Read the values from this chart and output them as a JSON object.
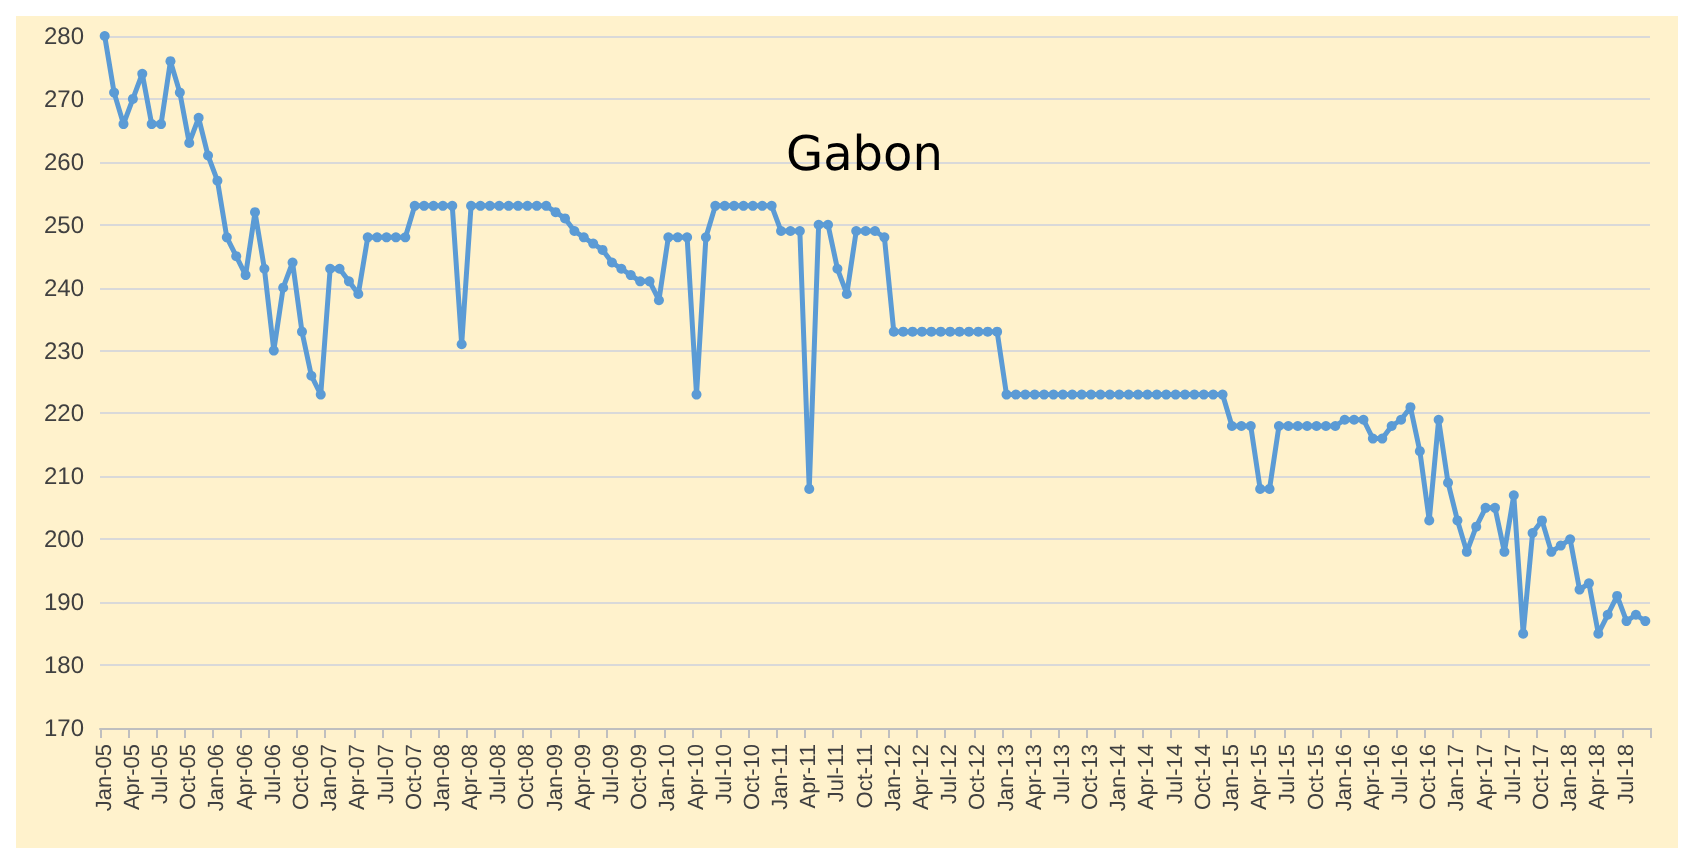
{
  "chart_data": {
    "type": "line",
    "title": "Gabon",
    "categories": [
      "Jan-05",
      null,
      null,
      "Apr-05",
      null,
      null,
      "Jul-05",
      null,
      null,
      "Oct-05",
      null,
      null,
      "Jan-06",
      null,
      null,
      "Apr-06",
      null,
      null,
      "Jul-06",
      null,
      null,
      "Oct-06",
      null,
      null,
      "Jan-07",
      null,
      null,
      "Apr-07",
      null,
      null,
      "Jul-07",
      null,
      null,
      "Oct-07",
      null,
      null,
      "Jan-08",
      null,
      null,
      "Apr-08",
      null,
      null,
      "Jul-08",
      null,
      null,
      "Oct-08",
      null,
      null,
      "Jan-09",
      null,
      null,
      "Apr-09",
      null,
      null,
      "Jul-09",
      null,
      null,
      "Oct-09",
      null,
      null,
      "Jan-10",
      null,
      null,
      "Apr-10",
      null,
      null,
      "Jul-10",
      null,
      null,
      "Oct-10",
      null,
      null,
      "Jan-11",
      null,
      null,
      "Apr-11",
      null,
      null,
      "Jul-11",
      null,
      null,
      "Oct-11",
      null,
      null,
      "Jan-12",
      null,
      null,
      "Apr-12",
      null,
      null,
      "Jul-12",
      null,
      null,
      "Oct-12",
      null,
      null,
      "Jan-13",
      null,
      null,
      "Apr-13",
      null,
      null,
      "Jul-13",
      null,
      null,
      "Oct-13",
      null,
      null,
      "Jan-14",
      null,
      null,
      "Apr-14",
      null,
      null,
      "Jul-14",
      null,
      null,
      "Oct-14",
      null,
      null,
      "Jan-15",
      null,
      null,
      "Apr-15",
      null,
      null,
      "Jul-15",
      null,
      null,
      "Oct-15",
      null,
      null,
      "Jan-16",
      null,
      null,
      "Apr-16",
      null,
      null,
      "Jul-16",
      null,
      null,
      "Oct-16",
      null,
      null,
      "Jan-17",
      null,
      null,
      "Apr-17",
      null,
      null,
      "Jul-17",
      null,
      null,
      "Oct-17",
      null,
      null,
      "Jan-18",
      null,
      null,
      "Apr-18",
      null,
      null,
      "Jul-18",
      null,
      null
    ],
    "series": [
      {
        "color": "#5b9bd5",
        "values": [
          280,
          271,
          266,
          270,
          274,
          266,
          266,
          276,
          271,
          263,
          267,
          261,
          257,
          248,
          245,
          242,
          252,
          243,
          230,
          240,
          244,
          233,
          226,
          223,
          243,
          243,
          241,
          239,
          248,
          248,
          248,
          248,
          248,
          253,
          253,
          253,
          253,
          253,
          231,
          253,
          253,
          253,
          253,
          253,
          253,
          253,
          253,
          253,
          252,
          251,
          249,
          248,
          247,
          246,
          244,
          243,
          242,
          241,
          241,
          238,
          248,
          248,
          248,
          223,
          248,
          253,
          253,
          253,
          253,
          253,
          253,
          253,
          249,
          249,
          249,
          208,
          250,
          250,
          243,
          239,
          249,
          249,
          249,
          248,
          233,
          233,
          233,
          233,
          233,
          233,
          233,
          233,
          233,
          233,
          233,
          233,
          223,
          223,
          223,
          223,
          223,
          223,
          223,
          223,
          223,
          223,
          223,
          223,
          223,
          223,
          223,
          223,
          223,
          223,
          223,
          223,
          223,
          223,
          223,
          223,
          218,
          218,
          218,
          208,
          208,
          218,
          218,
          218,
          218,
          218,
          218,
          218,
          219,
          219,
          219,
          216,
          216,
          218,
          219,
          221,
          214,
          203,
          219,
          209,
          203,
          198,
          202,
          205,
          205,
          198,
          207,
          185,
          201,
          203,
          198,
          199,
          200,
          192,
          193,
          185,
          188,
          191,
          187,
          188,
          187
        ]
      }
    ],
    "ylim": [
      170,
      280
    ],
    "yticks": [
      170,
      180,
      190,
      200,
      210,
      220,
      230,
      240,
      250,
      260,
      270,
      280
    ],
    "grid": "y",
    "marker": "circle",
    "line_style": "solid"
  }
}
